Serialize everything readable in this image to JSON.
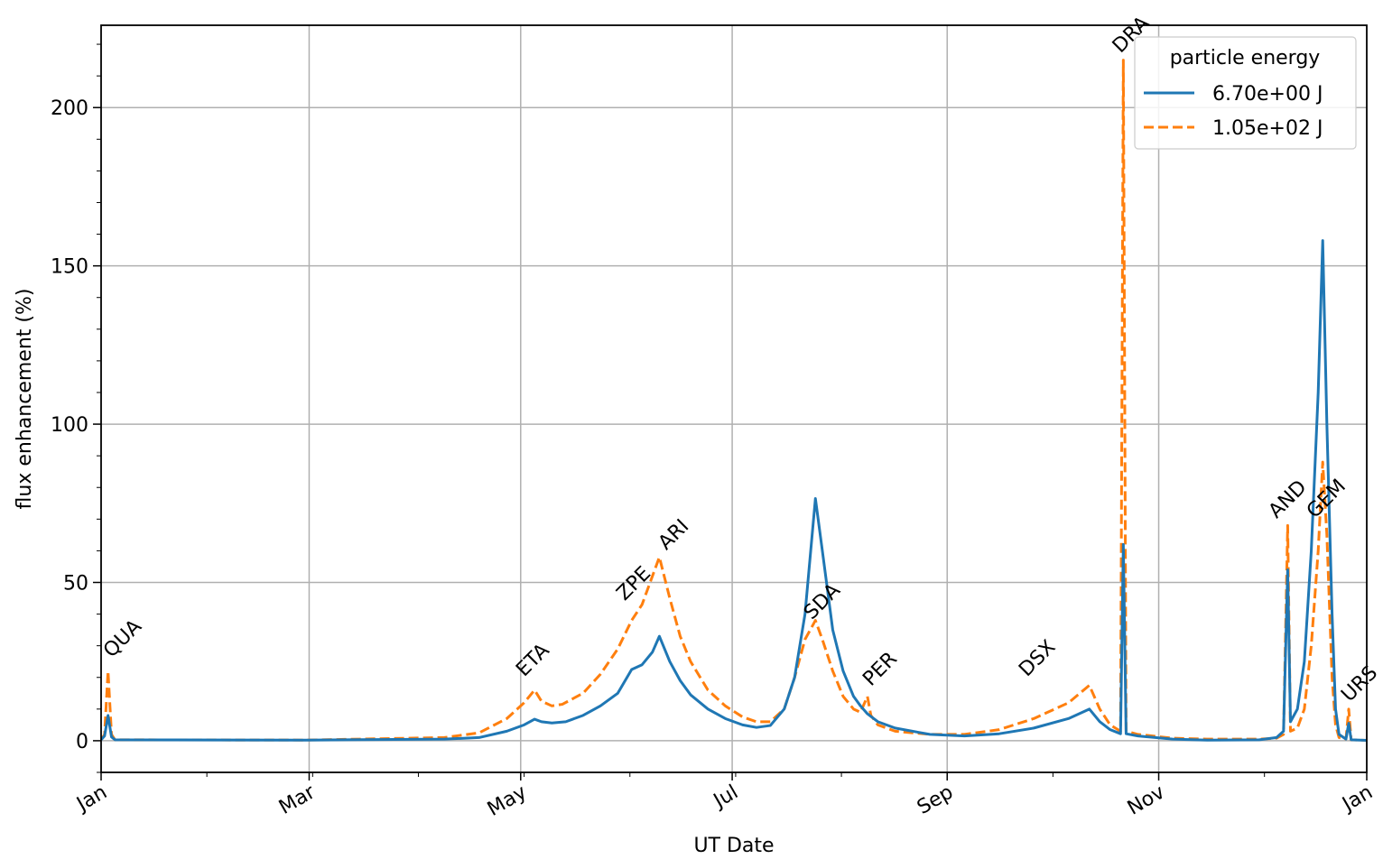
{
  "chart_data": {
    "type": "line",
    "xlabel": "UT Date",
    "ylabel": "flux enhancement (%)",
    "x_unit": "day of year",
    "xlim": [
      1,
      366
    ],
    "ylim": [
      -10,
      226
    ],
    "x_tick_labels": [
      "Jan",
      "Mar",
      "May",
      "Jul",
      "Sep",
      "Nov",
      "Jan"
    ],
    "x_tick_days": [
      1,
      61,
      122,
      183,
      245,
      306,
      366
    ],
    "y_ticks": [
      0,
      50,
      100,
      150,
      200
    ],
    "grid": true,
    "legend": {
      "title": "particle energy",
      "placement": "top-right"
    },
    "colors": {
      "series_1": "#1f77b4",
      "series_2": "#ff7f0e",
      "grid": "#b0b0b0"
    },
    "series": [
      {
        "name": "6.70e+00 J",
        "style": "solid",
        "points": [
          [
            1,
            0.3
          ],
          [
            2,
            1.5
          ],
          [
            3,
            8.0
          ],
          [
            4,
            1.2
          ],
          [
            5,
            0.3
          ],
          [
            60,
            0.2
          ],
          [
            100,
            0.5
          ],
          [
            110,
            1.0
          ],
          [
            118,
            3.0
          ],
          [
            123,
            5.0
          ],
          [
            126,
            6.8
          ],
          [
            128,
            6.0
          ],
          [
            131,
            5.6
          ],
          [
            135,
            6.0
          ],
          [
            140,
            8.0
          ],
          [
            145,
            11.0
          ],
          [
            150,
            15.0
          ],
          [
            154,
            22.5
          ],
          [
            157,
            24.0
          ],
          [
            160,
            28.0
          ],
          [
            162,
            33.0
          ],
          [
            165,
            25.0
          ],
          [
            168,
            19.0
          ],
          [
            171,
            14.5
          ],
          [
            176,
            10.0
          ],
          [
            181,
            7.0
          ],
          [
            186,
            5.0
          ],
          [
            190,
            4.2
          ],
          [
            194,
            4.8
          ],
          [
            198,
            10.0
          ],
          [
            201,
            20.0
          ],
          [
            204,
            40.0
          ],
          [
            207,
            76.5
          ],
          [
            209,
            60.0
          ],
          [
            212,
            35.0
          ],
          [
            215,
            22.0
          ],
          [
            218,
            14.0
          ],
          [
            220,
            11.0
          ],
          [
            222,
            8.5
          ],
          [
            225,
            6.0
          ],
          [
            230,
            4.0
          ],
          [
            240,
            2.0
          ],
          [
            250,
            1.5
          ],
          [
            260,
            2.2
          ],
          [
            270,
            4.0
          ],
          [
            280,
            7.0
          ],
          [
            286,
            10.0
          ],
          [
            289,
            6.0
          ],
          [
            292,
            3.5
          ],
          [
            295,
            2.2
          ],
          [
            295.8,
            62.0
          ],
          [
            296.6,
            2.2
          ],
          [
            300,
            1.5
          ],
          [
            310,
            0.5
          ],
          [
            320,
            0.2
          ],
          [
            335,
            0.3
          ],
          [
            340,
            1.0
          ],
          [
            342,
            3.0
          ],
          [
            343.2,
            54.0
          ],
          [
            344,
            6.0
          ],
          [
            346,
            10.0
          ],
          [
            348,
            25.0
          ],
          [
            350,
            60.0
          ],
          [
            352,
            110.0
          ],
          [
            353.3,
            158.0
          ],
          [
            354.5,
            100.0
          ],
          [
            356,
            40.0
          ],
          [
            357,
            10.0
          ],
          [
            358,
            2.0
          ],
          [
            360,
            0.5
          ],
          [
            360.8,
            5.5
          ],
          [
            361.5,
            0.3
          ],
          [
            366,
            0.1
          ]
        ]
      },
      {
        "name": "1.05e+02 J",
        "style": "dashed",
        "points": [
          [
            1,
            0.3
          ],
          [
            2,
            2.0
          ],
          [
            3,
            22.0
          ],
          [
            4,
            2.0
          ],
          [
            5,
            0.3
          ],
          [
            60,
            0.2
          ],
          [
            100,
            1.0
          ],
          [
            110,
            2.5
          ],
          [
            118,
            7.0
          ],
          [
            123,
            12.0
          ],
          [
            126,
            16.0
          ],
          [
            128,
            12.5
          ],
          [
            131,
            11.0
          ],
          [
            134,
            11.5
          ],
          [
            140,
            15.0
          ],
          [
            145,
            21.0
          ],
          [
            150,
            29.0
          ],
          [
            154,
            38.0
          ],
          [
            157,
            43.0
          ],
          [
            160,
            52.0
          ],
          [
            162,
            58.0
          ],
          [
            165,
            45.0
          ],
          [
            168,
            33.0
          ],
          [
            171,
            25.0
          ],
          [
            176,
            16.0
          ],
          [
            181,
            11.0
          ],
          [
            186,
            7.5
          ],
          [
            190,
            6.0
          ],
          [
            194,
            6.0
          ],
          [
            198,
            10.0
          ],
          [
            201,
            20.0
          ],
          [
            204,
            32.0
          ],
          [
            207,
            38.0
          ],
          [
            209,
            32.0
          ],
          [
            212,
            22.0
          ],
          [
            215,
            14.0
          ],
          [
            218,
            10.0
          ],
          [
            220,
            9.0
          ],
          [
            222,
            14.0
          ],
          [
            223,
            8.0
          ],
          [
            225,
            5.0
          ],
          [
            230,
            3.0
          ],
          [
            240,
            2.0
          ],
          [
            250,
            2.0
          ],
          [
            260,
            3.5
          ],
          [
            270,
            7.0
          ],
          [
            280,
            12.0
          ],
          [
            286,
            17.5
          ],
          [
            289,
            10.0
          ],
          [
            292,
            5.0
          ],
          [
            295,
            3.0
          ],
          [
            295.8,
            215.0
          ],
          [
            296.6,
            3.0
          ],
          [
            300,
            2.0
          ],
          [
            310,
            0.8
          ],
          [
            320,
            0.5
          ],
          [
            335,
            0.5
          ],
          [
            340,
            0.8
          ],
          [
            342,
            2.0
          ],
          [
            343.2,
            68.0
          ],
          [
            344,
            3.0
          ],
          [
            346,
            4.0
          ],
          [
            348,
            10.0
          ],
          [
            350,
            30.0
          ],
          [
            352,
            60.0
          ],
          [
            353.3,
            88.0
          ],
          [
            354.5,
            65.0
          ],
          [
            356,
            20.0
          ],
          [
            357,
            5.0
          ],
          [
            358,
            1.0
          ],
          [
            360,
            0.5
          ],
          [
            360.8,
            10.0
          ],
          [
            361.5,
            0.3
          ],
          [
            366,
            0.1
          ]
        ]
      }
    ],
    "annotations": [
      {
        "text": "QUA",
        "x": 4,
        "y": 26
      },
      {
        "text": "ETA",
        "x": 123,
        "y": 20
      },
      {
        "text": "ZPE",
        "x": 152,
        "y": 44
      },
      {
        "text": "ARI",
        "x": 164,
        "y": 60
      },
      {
        "text": "SDA",
        "x": 206,
        "y": 38
      },
      {
        "text": "PER",
        "x": 223,
        "y": 17
      },
      {
        "text": "DSX",
        "x": 268,
        "y": 20
      },
      {
        "text": "DRA",
        "x": 295,
        "y": 217
      },
      {
        "text": "AND",
        "x": 340,
        "y": 70
      },
      {
        "text": "GEM",
        "x": 351,
        "y": 70
      },
      {
        "text": "URS",
        "x": 361,
        "y": 12
      }
    ]
  }
}
